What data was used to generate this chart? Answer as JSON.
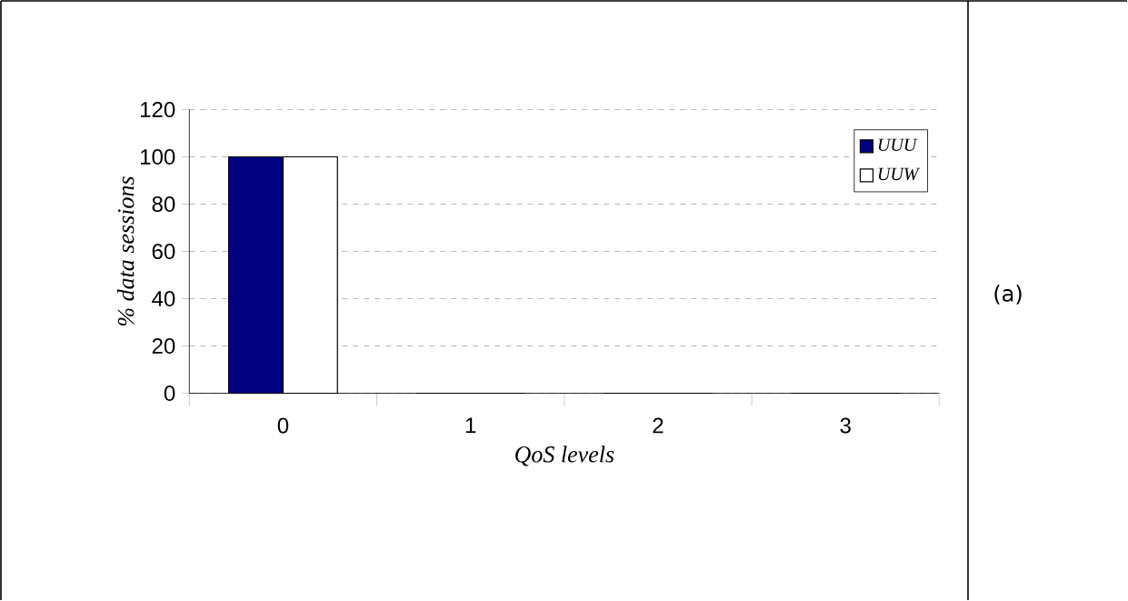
{
  "chart_data": {
    "type": "bar",
    "xlabel": "QoS levels",
    "ylabel": "% data sessions",
    "categories": [
      "0",
      "1",
      "2",
      "3"
    ],
    "series": [
      {
        "name": "UUU",
        "color": "#000080",
        "values": [
          100,
          0,
          0,
          0
        ]
      },
      {
        "name": "UUW",
        "color": "#ffffff",
        "values": [
          100,
          0,
          0,
          0
        ]
      }
    ],
    "ylim": [
      0,
      120
    ],
    "yticks": [
      0,
      20,
      40,
      60,
      80,
      100,
      120
    ],
    "grid": "y",
    "legend": "top right",
    "annotations": [
      "(a)"
    ]
  }
}
